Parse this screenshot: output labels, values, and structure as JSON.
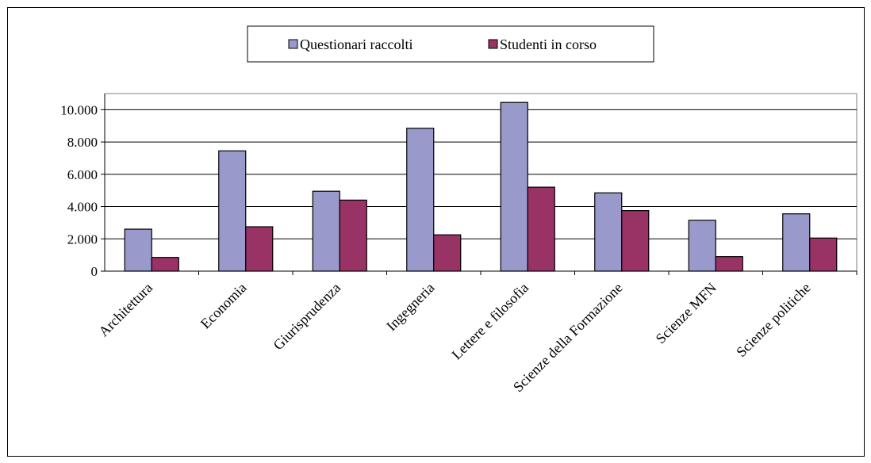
{
  "chart_data": {
    "type": "bar",
    "categories": [
      "Architettura",
      "Economia",
      "Giurisprudenza",
      "Ingegneria",
      "Lettere e filosofia",
      "Scienze della Formazione",
      "Scienze MFN",
      "Scienze politiche"
    ],
    "series": [
      {
        "name": "Questionari raccolti",
        "color": "#9999cc",
        "values": [
          2600,
          7450,
          4950,
          8850,
          10450,
          4850,
          3150,
          3550
        ]
      },
      {
        "name": "Studenti in corso",
        "color": "#993366",
        "values": [
          850,
          2750,
          4400,
          2250,
          5200,
          3750,
          900,
          2050
        ]
      }
    ],
    "ylim": [
      0,
      11000
    ],
    "yticks": [
      0,
      2000,
      4000,
      6000,
      8000,
      10000
    ],
    "ytick_labels": [
      "0",
      "2.000",
      "4.000",
      "6.000",
      "8.000",
      "10.000"
    ],
    "grid": true,
    "legend_position": "top",
    "title": "",
    "xlabel": "",
    "ylabel": ""
  }
}
